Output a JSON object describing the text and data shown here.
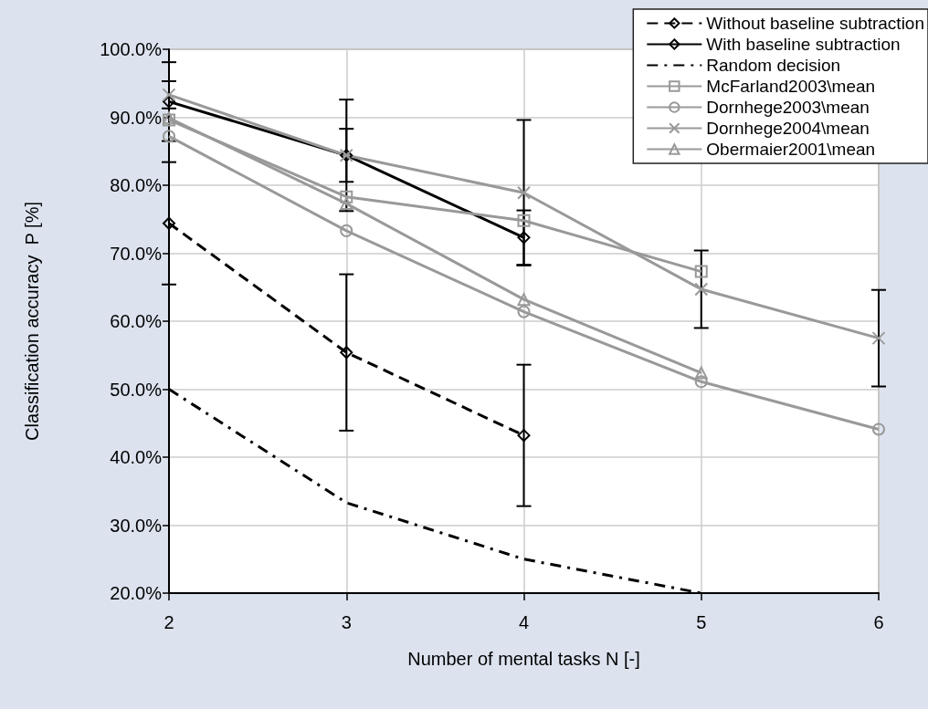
{
  "chart_data": {
    "type": "line",
    "xlabel": "Number of mental tasks N [-]",
    "ylabel": "Classification accuracy  P [%]",
    "x": [
      2,
      3,
      4,
      5,
      6
    ],
    "xlim": [
      2,
      6
    ],
    "xticks": [
      2,
      3,
      4,
      5,
      6
    ],
    "ylim": [
      20,
      100
    ],
    "yticks": [
      {
        "value": 20,
        "label": "20.0%"
      },
      {
        "value": 30,
        "label": "30.0%"
      },
      {
        "value": 40,
        "label": "40.0%"
      },
      {
        "value": 50,
        "label": "50.0%"
      },
      {
        "value": 60,
        "label": "60.0%"
      },
      {
        "value": 70,
        "label": "70.0%"
      },
      {
        "value": 80,
        "label": "80.0%"
      },
      {
        "value": 90,
        "label": "90.0%"
      },
      {
        "value": 100,
        "label": "100.0%"
      }
    ],
    "grid": true,
    "legend": "top right",
    "series": [
      {
        "name": "Without baseline subtraction",
        "color": "#000000",
        "marker": "diamond",
        "line_style": "dashed",
        "values": [
          74.4,
          55.4,
          43.2,
          null,
          null
        ],
        "errors": [
          9,
          11.5,
          10.4,
          null,
          null
        ]
      },
      {
        "name": "With baseline subtraction",
        "color": "#000000",
        "marker": "diamond",
        "line_style": "solid",
        "values": [
          92.3,
          84.4,
          72.3,
          null,
          null
        ],
        "errors": [
          5.8,
          8.2,
          4,
          null,
          null
        ]
      },
      {
        "name": "Random decision",
        "color": "#000000",
        "marker": "none",
        "line_style": "dashdot",
        "values": [
          50,
          33.3,
          25,
          20,
          null
        ]
      },
      {
        "name": "McFarland2003\\mean",
        "color": "#999999",
        "marker": "square",
        "line_style": "solid",
        "values": [
          89.6,
          78.3,
          74.8,
          67.3,
          null
        ]
      },
      {
        "name": "Dornhege2003\\mean",
        "color": "#999999",
        "marker": "circle",
        "line_style": "solid",
        "values": [
          87.2,
          73.3,
          61.4,
          51.1,
          44.1
        ]
      },
      {
        "name": "Dornhege2004\\mean",
        "color": "#999999",
        "marker": "cross",
        "line_style": "solid",
        "values": [
          93.3,
          84.4,
          78.9,
          64.7,
          57.5
        ],
        "errors": [
          2,
          3.9,
          10.7,
          5.7,
          7.1
        ]
      },
      {
        "name": "Obermaier2001\\mean",
        "color": "#999999",
        "marker": "triangle",
        "line_style": "solid",
        "values": [
          89.9,
          77.3,
          63.2,
          52.4,
          null
        ]
      }
    ]
  }
}
